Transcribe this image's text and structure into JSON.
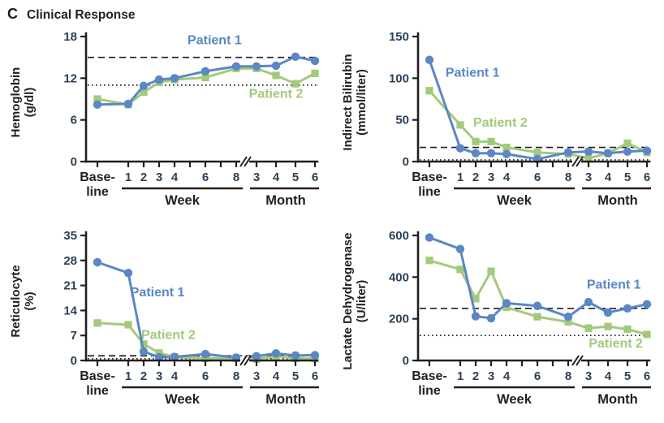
{
  "title": {
    "panel_letter": "C",
    "text": "Clinical Response"
  },
  "colors": {
    "patient1": "#5b87c5",
    "patient2": "#a2ca7b",
    "axis": "#231f20",
    "tick_text": "#2d4156",
    "label_text": "#231f20",
    "background": "#ffffff"
  },
  "x_axis": {
    "baseline_label": [
      "Base-",
      "line"
    ],
    "week_group_label": "Week",
    "month_group_label": "Month",
    "week_tick_slots": [
      1,
      2,
      3,
      4,
      5,
      6,
      7,
      8
    ],
    "week_labels": {
      "1": "1",
      "2": "2",
      "3": "3",
      "4": "4",
      "6": "6",
      "8": "8"
    },
    "month_tick_slots": [
      9,
      10,
      11,
      12
    ],
    "month_labels": {
      "9": "3",
      "10": "4",
      "11": "5",
      "12": "6"
    },
    "data_slots": [
      0,
      1,
      2,
      3,
      4,
      6,
      8,
      9,
      10,
      11,
      12
    ],
    "point_labels": [
      "Baseline",
      "Week 1",
      "Week 2",
      "Week 3",
      "Week 4",
      "Week 6",
      "Week 8",
      "Month 3",
      "Month 4",
      "Month 5",
      "Month 6"
    ],
    "axis_break_between": [
      "Week 8",
      "Month 3"
    ]
  },
  "chart_data": [
    {
      "id": "hemoglobin",
      "type": "line",
      "ylabel": [
        "Hemoglobin",
        "(g/dl)"
      ],
      "ylim": [
        0,
        18
      ],
      "yticks": [
        0,
        6,
        12,
        18
      ],
      "reference_lines": {
        "dashed": 15,
        "dotted": 11
      },
      "series": [
        {
          "name": "Patient 1",
          "marker": "circle",
          "color": "#5b87c5",
          "values": [
            8.2,
            8.3,
            10.9,
            11.8,
            12.0,
            13.0,
            13.7,
            13.7,
            13.8,
            15.1,
            14.5
          ],
          "label_pos": {
            "slot": 6.6,
            "value": 16.9
          }
        },
        {
          "name": "Patient 2",
          "marker": "square",
          "color": "#a2ca7b",
          "values": [
            9.0,
            8.2,
            10.0,
            11.4,
            11.8,
            12.1,
            13.4,
            13.4,
            12.4,
            11.2,
            12.7
          ],
          "label_pos": {
            "slot": 10.0,
            "value": 9.2
          }
        }
      ]
    },
    {
      "id": "indirect-bilirubin",
      "type": "line",
      "ylabel": [
        "Indirect Bilirubin",
        "(mmol/liter)"
      ],
      "ylim": [
        0,
        150
      ],
      "yticks": [
        0,
        50,
        100,
        150
      ],
      "reference_lines": {
        "dashed": 17,
        "dotted": 2
      },
      "series": [
        {
          "name": "Patient 1",
          "marker": "circle",
          "color": "#5b87c5",
          "values": [
            122,
            16,
            10,
            10,
            9,
            3,
            11,
            12,
            10,
            12,
            13
          ],
          "label_pos": {
            "slot": 1.8,
            "value": 102
          }
        },
        {
          "name": "Patient 2",
          "marker": "square",
          "color": "#a2ca7b",
          "values": [
            85,
            44,
            24,
            24,
            17,
            11,
            9,
            4,
            10,
            22,
            11
          ],
          "label_pos": {
            "slot": 3.6,
            "value": 42
          }
        }
      ]
    },
    {
      "id": "reticulocyte",
      "type": "line",
      "ylabel": [
        "Reticulocyte",
        "(%)"
      ],
      "ylim": [
        0,
        35
      ],
      "yticks": [
        0,
        7,
        14,
        21,
        28,
        35
      ],
      "reference_lines": {
        "dashed": 1.3,
        "dotted": 0.5
      },
      "series": [
        {
          "name": "Patient 1",
          "marker": "circle",
          "color": "#5b87c5",
          "values": [
            27.5,
            24.5,
            2.5,
            0.9,
            1.0,
            1.8,
            0.8,
            1.2,
            2.0,
            1.4,
            1.5
          ],
          "label_pos": {
            "slot": 2.9,
            "value": 18
          }
        },
        {
          "name": "Patient 2",
          "marker": "square",
          "color": "#a2ca7b",
          "values": [
            10.5,
            10.0,
            4.6,
            2.1,
            1.0,
            0.6,
            0.6,
            0.4,
            1.2,
            0.6,
            0.5
          ],
          "label_pos": {
            "slot": 3.6,
            "value": 6.0
          }
        }
      ]
    },
    {
      "id": "lactate-dehydrogenase",
      "type": "line",
      "ylabel": [
        "Lactate Dehydrogenase",
        "(U/liter)"
      ],
      "ylim": [
        0,
        600
      ],
      "yticks": [
        0,
        200,
        400,
        600
      ],
      "reference_lines": {
        "dashed": 250,
        "dotted": 120
      },
      "series": [
        {
          "name": "Patient 1",
          "marker": "circle",
          "color": "#5b87c5",
          "values": [
            590,
            535,
            212,
            203,
            275,
            262,
            210,
            280,
            230,
            250,
            270
          ],
          "label_pos": {
            "slot": 10.3,
            "value": 345
          }
        },
        {
          "name": "Patient 2",
          "marker": "square",
          "color": "#a2ca7b",
          "values": [
            480,
            437,
            297,
            428,
            255,
            210,
            185,
            155,
            163,
            150,
            125
          ],
          "label_pos": {
            "slot": 10.4,
            "value": 62
          }
        }
      ]
    }
  ]
}
